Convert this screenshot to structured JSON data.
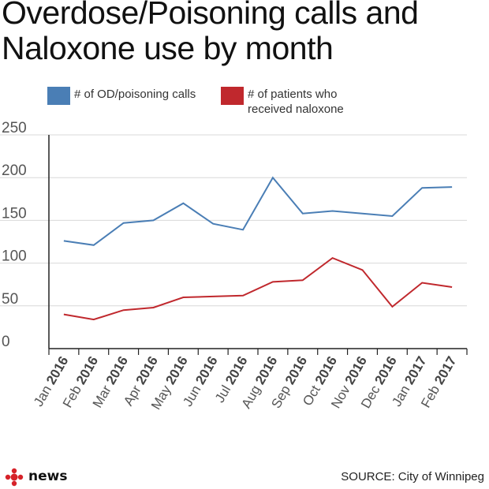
{
  "chart_data": {
    "type": "line",
    "title": "Overdose/Poisoning calls and Naloxone use by month",
    "categories": [
      "Jan 2016",
      "Feb 2016",
      "Mar 2016",
      "Apr 2016",
      "May 2016",
      "Jun 2016",
      "Jul 2016",
      "Aug 2016",
      "Sep 2016",
      "Oct 2016",
      "Nov 2016",
      "Dec 2016",
      "Jan 2017",
      "Feb 2017"
    ],
    "category_parts": [
      [
        "Jan",
        "2016"
      ],
      [
        "Feb",
        "2016"
      ],
      [
        "Mar",
        "2016"
      ],
      [
        "Apr",
        "2016"
      ],
      [
        "May",
        "2016"
      ],
      [
        "Jun",
        "2016"
      ],
      [
        "Jul",
        "2016"
      ],
      [
        "Aug",
        "2016"
      ],
      [
        "Sep",
        "2016"
      ],
      [
        "Oct",
        "2016"
      ],
      [
        "Nov",
        "2016"
      ],
      [
        "Dec",
        "2016"
      ],
      [
        "Jan",
        "2017"
      ],
      [
        "Feb",
        "2017"
      ]
    ],
    "series": [
      {
        "name": "# of OD/poisoning calls",
        "color": "#4a7eb5",
        "values": [
          126,
          121,
          147,
          150,
          170,
          146,
          139,
          200,
          158,
          161,
          158,
          155,
          188,
          189
        ]
      },
      {
        "name": "# of patients who received naloxone",
        "color": "#c0282d",
        "values": [
          40,
          34,
          45,
          48,
          60,
          61,
          62,
          78,
          80,
          106,
          92,
          49,
          77,
          72
        ]
      }
    ],
    "ylim": [
      0,
      250
    ],
    "yticks": [
      0,
      50,
      100,
      150,
      200,
      250
    ],
    "grid": true,
    "legend": "top",
    "xlabel": "",
    "ylabel": ""
  },
  "legend": {
    "calls_label": "# of OD/poisoning calls",
    "naloxone_label_line1": "# of patients who",
    "naloxone_label_line2": "received naloxone"
  },
  "footer": {
    "brand": "news",
    "logo_icon": "cbc-gem-icon",
    "source": "SOURCE: City of Winnipeg"
  }
}
